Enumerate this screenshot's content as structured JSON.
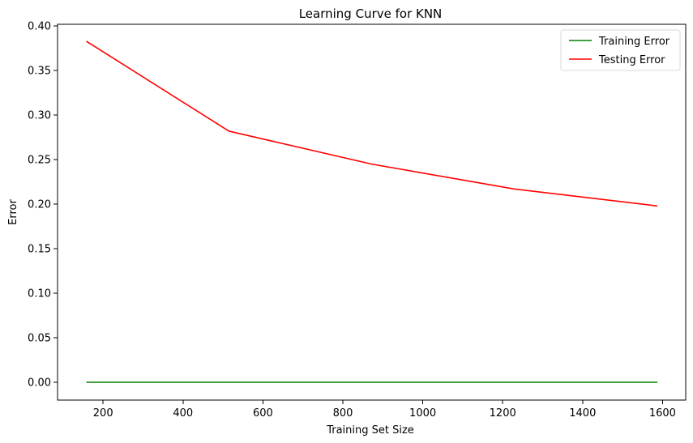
{
  "chart_data": {
    "type": "line",
    "title": "Learning Curve for KNN",
    "xlabel": "Training Set Size",
    "ylabel": "Error",
    "x": [
      158,
      515,
      872,
      1230,
      1587
    ],
    "series": [
      {
        "name": "Training Error",
        "color": "#008000",
        "values": [
          0.0,
          0.0,
          0.0,
          0.0,
          0.0
        ]
      },
      {
        "name": "Testing Error",
        "color": "#ff0000",
        "values": [
          0.383,
          0.282,
          0.245,
          0.217,
          0.198
        ]
      }
    ],
    "xlim": [
      86,
      1658
    ],
    "ylim": [
      -0.02,
      0.402
    ],
    "xticks": [
      200,
      400,
      600,
      800,
      1000,
      1200,
      1400,
      1600
    ],
    "yticks": [
      0.0,
      0.05,
      0.1,
      0.15,
      0.2,
      0.25,
      0.3,
      0.35,
      0.4
    ],
    "xtick_labels": [
      "200",
      "400",
      "600",
      "800",
      "1000",
      "1200",
      "1400",
      "1600"
    ],
    "ytick_labels": [
      "0.00",
      "0.05",
      "0.10",
      "0.15",
      "0.20",
      "0.25",
      "0.30",
      "0.35",
      "0.40"
    ],
    "grid": false,
    "legend": "top-right"
  }
}
